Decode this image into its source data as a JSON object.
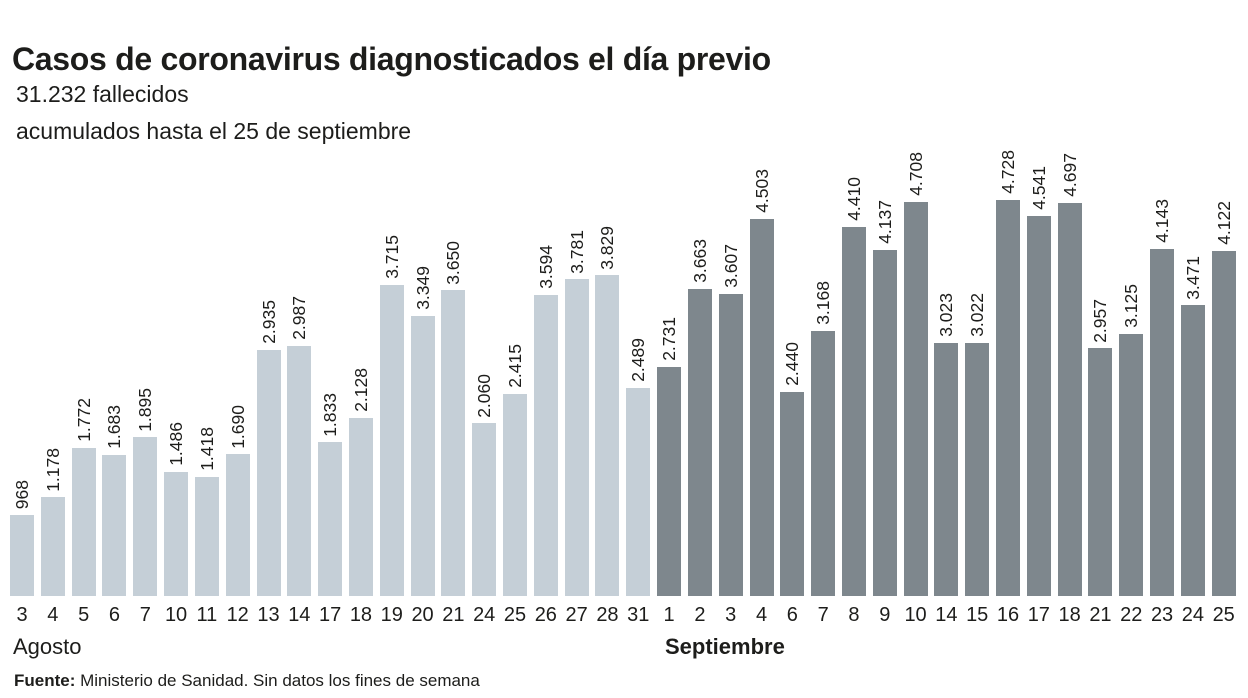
{
  "header": {
    "title": "Casos de coronavirus diagnosticados el día previo",
    "subtitle_line1": "31.232 fallecidos",
    "subtitle_line2": "acumulados hasta el 25 de septiembre"
  },
  "chart_data": {
    "type": "bar",
    "title": "Casos de coronavirus diagnosticados el día previo",
    "xlabel": "",
    "ylabel": "",
    "ylim": [
      0,
      4728
    ],
    "grid": false,
    "legend": false,
    "value_labels": "rotated-90-above-bars",
    "series": [
      {
        "name": "Agosto",
        "color": "#c5cfd7",
        "points": [
          {
            "day": "3",
            "value": 968,
            "label": "968"
          },
          {
            "day": "4",
            "value": 1178,
            "label": "1.178"
          },
          {
            "day": "5",
            "value": 1772,
            "label": "1.772"
          },
          {
            "day": "6",
            "value": 1683,
            "label": "1.683"
          },
          {
            "day": "7",
            "value": 1895,
            "label": "1.895"
          },
          {
            "day": "10",
            "value": 1486,
            "label": "1.486"
          },
          {
            "day": "11",
            "value": 1418,
            "label": "1.418"
          },
          {
            "day": "12",
            "value": 1690,
            "label": "1.690"
          },
          {
            "day": "13",
            "value": 2935,
            "label": "2.935"
          },
          {
            "day": "14",
            "value": 2987,
            "label": "2.987"
          },
          {
            "day": "17",
            "value": 1833,
            "label": "1.833"
          },
          {
            "day": "18",
            "value": 2128,
            "label": "2.128"
          },
          {
            "day": "19",
            "value": 3715,
            "label": "3.715"
          },
          {
            "day": "20",
            "value": 3349,
            "label": "3.349"
          },
          {
            "day": "21",
            "value": 3650,
            "label": "3.650"
          },
          {
            "day": "24",
            "value": 2060,
            "label": "2.060"
          },
          {
            "day": "25",
            "value": 2415,
            "label": "2.415"
          },
          {
            "day": "26",
            "value": 3594,
            "label": "3.594"
          },
          {
            "day": "27",
            "value": 3781,
            "label": "3.781"
          },
          {
            "day": "28",
            "value": 3829,
            "label": "3.829"
          },
          {
            "day": "31",
            "value": 2489,
            "label": "2.489"
          }
        ]
      },
      {
        "name": "Septiembre",
        "color": "#7e878d",
        "points": [
          {
            "day": "1",
            "value": 2731,
            "label": "2.731"
          },
          {
            "day": "2",
            "value": 3663,
            "label": "3.663"
          },
          {
            "day": "3",
            "value": 3607,
            "label": "3.607"
          },
          {
            "day": "4",
            "value": 4503,
            "label": "4.503"
          },
          {
            "day": "6",
            "value": 2440,
            "label": "2.440"
          },
          {
            "day": "7",
            "value": 3168,
            "label": "3.168"
          },
          {
            "day": "8",
            "value": 4410,
            "label": "4.410"
          },
          {
            "day": "9",
            "value": 4137,
            "label": "4.137"
          },
          {
            "day": "10",
            "value": 4708,
            "label": "4.708"
          },
          {
            "day": "14",
            "value": 3023,
            "label": "3.023"
          },
          {
            "day": "15",
            "value": 3022,
            "label": "3.022"
          },
          {
            "day": "16",
            "value": 4728,
            "label": "4.728"
          },
          {
            "day": "17",
            "value": 4541,
            "label": "4.541"
          },
          {
            "day": "18",
            "value": 4697,
            "label": "4.697"
          },
          {
            "day": "21",
            "value": 2957,
            "label": "2.957"
          },
          {
            "day": "22",
            "value": 3125,
            "label": "3.125"
          },
          {
            "day": "23",
            "value": 4143,
            "label": "4.143"
          },
          {
            "day": "24",
            "value": 3471,
            "label": "3.471"
          },
          {
            "day": "25",
            "value": 4122,
            "label": "4.122"
          }
        ]
      }
    ]
  },
  "x_axis": {
    "month_august": "Agosto",
    "month_september": "Septiembre"
  },
  "footer": {
    "source_label": "Fuente:",
    "source_text": " Ministerio de Sanidad. Sin datos los fines de semana"
  }
}
